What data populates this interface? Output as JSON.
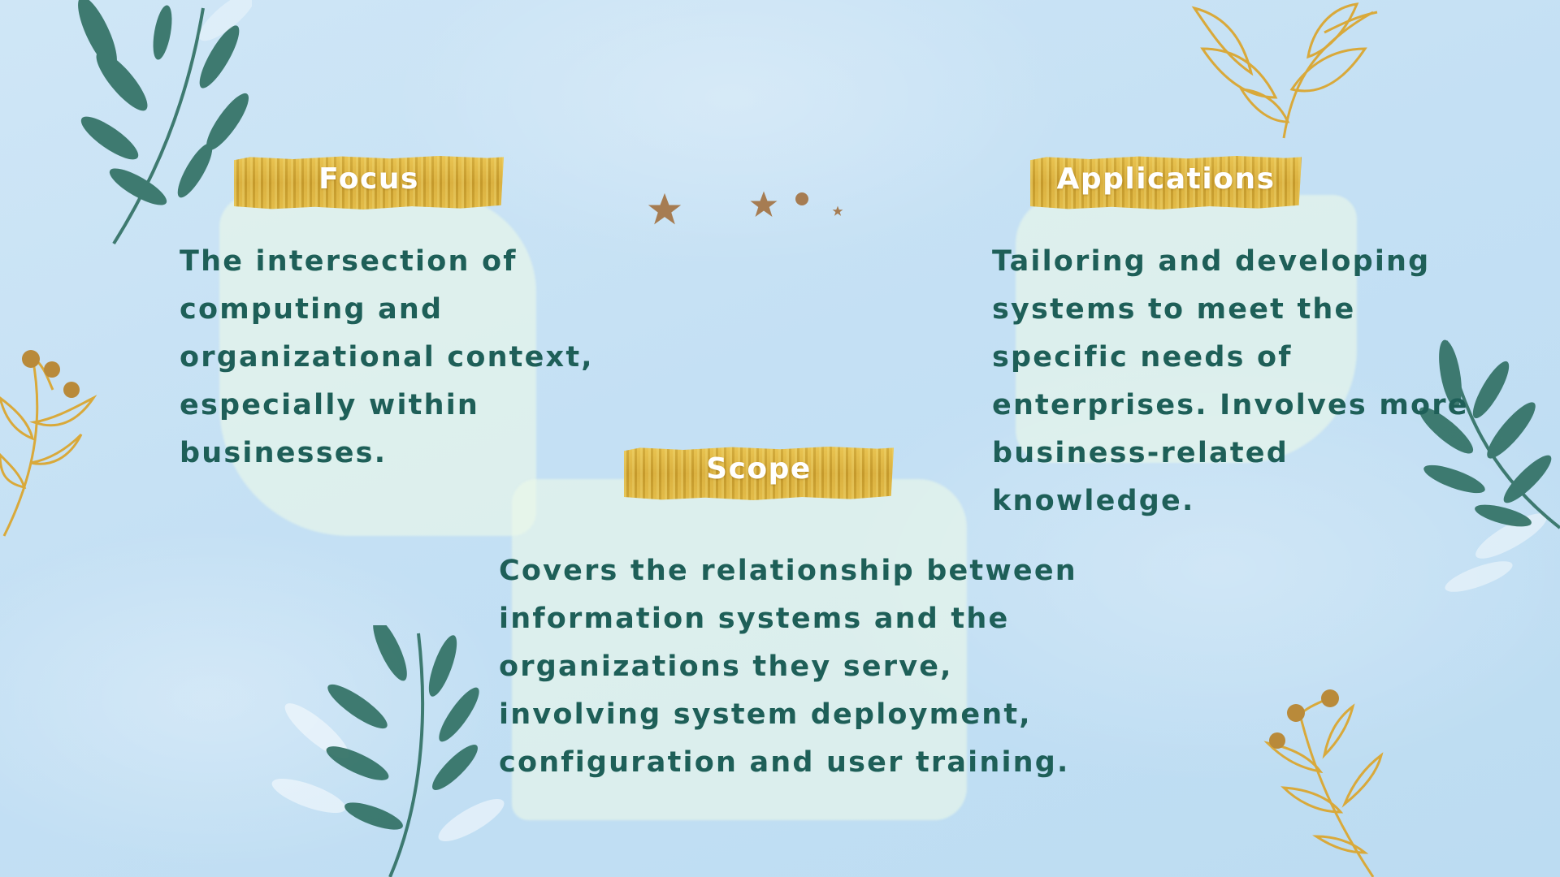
{
  "sections": {
    "focus": {
      "title": "Focus",
      "lines": [
        "The intersection of",
        "computing and",
        "organizational context,",
        "especially within",
        "businesses."
      ]
    },
    "applications": {
      "title": "Applications",
      "lines": [
        "Tailoring and developing",
        "systems to meet the",
        "specific needs of",
        "enterprises. Involves more",
        "business-related",
        "knowledge."
      ]
    },
    "scope": {
      "title": "Scope",
      "lines": [
        "Covers the relationship between",
        "information systems and the",
        "organizations they serve,",
        "involving system deployment,",
        "configuration and user training."
      ]
    }
  },
  "colors": {
    "text": "#1e5f58",
    "banner_gold": "#d4a935",
    "leaf_green": "#2f6f62",
    "gold_line": "#d9a93a",
    "star_brown": "#a67c52"
  },
  "decorations": [
    "leaf-branch-icon",
    "gold-branch-icon",
    "berry-branch-icon",
    "star-icon",
    "dot-icon"
  ]
}
